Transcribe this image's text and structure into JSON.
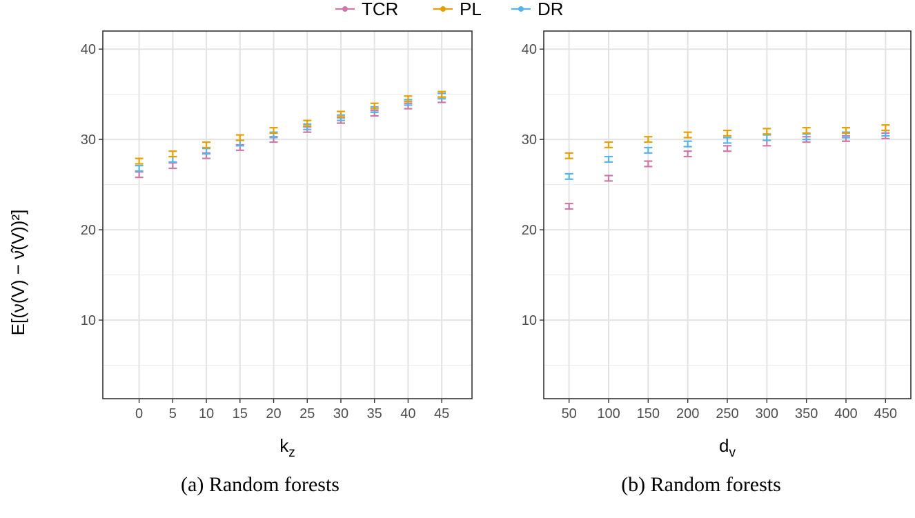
{
  "legend": {
    "items": [
      {
        "name": "TCR",
        "color": "#cc79a7"
      },
      {
        "name": "PL",
        "color": "#e69f00"
      },
      {
        "name": "DR",
        "color": "#56b4e9"
      }
    ]
  },
  "y_axis_label": "E[(ν(V) − ν̂(V))²]",
  "chart_data": [
    {
      "type": "errorbar",
      "title": "",
      "caption": "(a) Random forests",
      "xlabel": "k",
      "xlabel_sub": "z",
      "x": [
        0,
        5,
        10,
        15,
        20,
        25,
        30,
        35,
        40,
        45
      ],
      "x_tick_labels": [
        "0",
        "5",
        "10",
        "15",
        "20",
        "25",
        "30",
        "35",
        "40",
        "45"
      ],
      "y_ticks": [
        10,
        20,
        30,
        40
      ],
      "y_tick_labels": [
        "10",
        "20",
        "30",
        "40"
      ],
      "ylim": [
        1.3,
        42.0
      ],
      "series": [
        {
          "name": "TCR",
          "values": [
            26.1,
            27.1,
            28.2,
            29.1,
            30.0,
            31.1,
            32.1,
            32.9,
            33.7,
            34.4
          ],
          "err": 0.3
        },
        {
          "name": "PL",
          "values": [
            27.6,
            28.4,
            29.4,
            30.2,
            31.0,
            31.8,
            32.8,
            33.7,
            34.5,
            35.0
          ],
          "err": 0.3
        },
        {
          "name": "DR",
          "values": [
            26.8,
            27.8,
            28.7,
            29.6,
            30.5,
            31.4,
            32.4,
            33.3,
            34.1,
            34.8
          ],
          "err": 0.3
        }
      ]
    },
    {
      "type": "errorbar",
      "title": "",
      "caption": "(b) Random forests",
      "xlabel": "d",
      "xlabel_sub": "v",
      "x": [
        50,
        100,
        150,
        200,
        250,
        300,
        350,
        400,
        450
      ],
      "x_tick_labels": [
        "50",
        "100",
        "150",
        "200",
        "250",
        "300",
        "350",
        "400",
        "450"
      ],
      "y_ticks": [
        10,
        20,
        30,
        40
      ],
      "y_tick_labels": [
        "10",
        "20",
        "30",
        "40"
      ],
      "ylim": [
        1.3,
        42.0
      ],
      "series": [
        {
          "name": "TCR",
          "values": [
            22.6,
            25.7,
            27.3,
            28.4,
            29.0,
            29.6,
            30.0,
            30.1,
            30.4
          ],
          "err": 0.3
        },
        {
          "name": "PL",
          "values": [
            28.2,
            29.4,
            30.0,
            30.5,
            30.7,
            30.9,
            31.0,
            31.0,
            31.3
          ],
          "err": 0.3
        },
        {
          "name": "DR",
          "values": [
            25.9,
            27.8,
            28.8,
            29.5,
            29.9,
            30.2,
            30.3,
            30.5,
            30.7
          ],
          "err": 0.3
        }
      ]
    }
  ]
}
